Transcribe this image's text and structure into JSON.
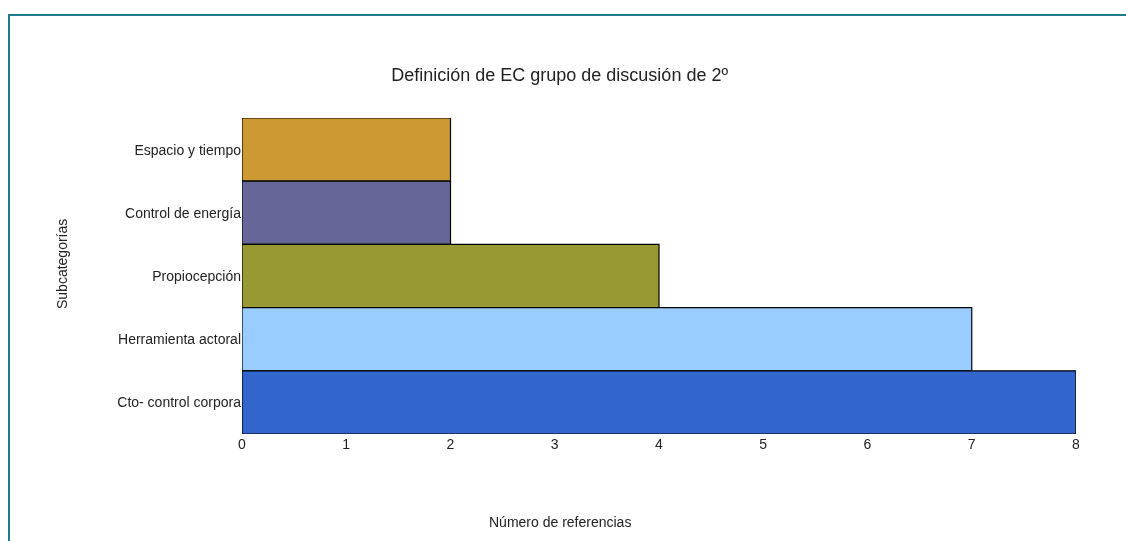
{
  "chart_data": {
    "type": "bar",
    "orientation": "horizontal",
    "title": "Definición de EC grupo de discusión de 2º",
    "xlabel": "Número de referencias",
    "ylabel": "Subcategorías",
    "categories": [
      "Espacio y tiempo",
      "Control de energía",
      "Propiocepción",
      "Herramienta actoral",
      "Cto- control corpora"
    ],
    "values": [
      2,
      2,
      4,
      7,
      8
    ],
    "colors": [
      "#cc9933",
      "#666699",
      "#999933",
      "#99ccff",
      "#3366cc"
    ],
    "xlim": [
      0,
      8
    ],
    "xticks": [
      0,
      1,
      2,
      3,
      4,
      5,
      6,
      7,
      8
    ]
  }
}
